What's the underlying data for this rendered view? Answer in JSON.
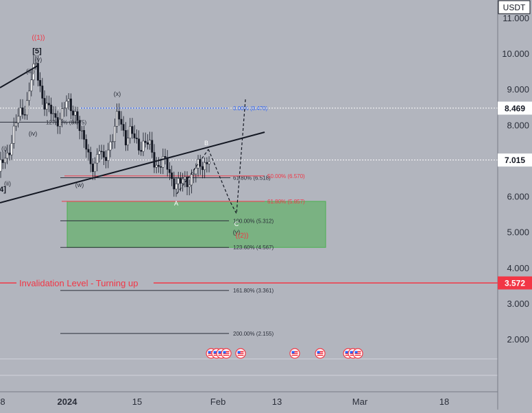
{
  "currency": "USDT",
  "invalidation_text": "Invalidation Level - Turning up",
  "current_price": "7.015",
  "price_tag_high": "8.469",
  "price_tag_invalidation": "3.572",
  "chart_data": {
    "type": "candlestick",
    "y_axis_ticks": [
      "11.000",
      "10.000",
      "9.000",
      "8.000",
      "7.000",
      "6.000",
      "5.000",
      "4.000",
      "3.000",
      "2.000"
    ],
    "y_ticks": [
      11,
      10,
      9,
      8,
      7,
      6,
      5,
      4,
      3,
      2
    ],
    "x_axis_ticks": [
      "8",
      "2024",
      "15",
      "Feb",
      "13",
      "Mar",
      "18"
    ],
    "ylim": [
      1.0,
      11.3
    ],
    "fib_levels": [
      {
        "label": "0.00% (8.470)",
        "value": 8.47,
        "color": "#2962ff"
      },
      {
        "label": "127.20% (8.075)",
        "value": 8.075,
        "color": "#2a2e39"
      },
      {
        "label": "61.80% (6.518)",
        "value": 6.518,
        "color": "#2a2e39"
      },
      {
        "label": "50.00% (6.570)",
        "value": 6.57,
        "color": "#f23645"
      },
      {
        "label": "61.80% (5.857)",
        "value": 5.857,
        "color": "#f23645"
      },
      {
        "label": "100.00% (5.312)",
        "value": 5.312,
        "color": "#2a2e39"
      },
      {
        "label": "123.60% (4.567)",
        "value": 4.567,
        "color": "#2a2e39"
      },
      {
        "label": "161.80% (3.361)",
        "value": 3.361,
        "color": "#2a2e39"
      },
      {
        "label": "200.00% (2.155)",
        "value": 2.155,
        "color": "#2a2e39"
      }
    ],
    "wave_labels": [
      {
        "text": "((1))",
        "color": "#f23645"
      },
      {
        "text": "[5]",
        "color": "#131722"
      },
      {
        "text": "(v)",
        "color": "#2a2e39"
      },
      {
        "text": "(iii)",
        "color": "#2a2e39"
      },
      {
        "text": "(iv)",
        "color": "#2a2e39"
      },
      {
        "text": "(i)",
        "color": "#2a2e39"
      },
      {
        "text": "(ii)",
        "color": "#2a2e39"
      },
      {
        "text": "4]",
        "color": "#131722"
      },
      {
        "text": "(x)",
        "color": "#2a2e39"
      },
      {
        "text": "(w)",
        "color": "#2a2e39"
      },
      {
        "text": "A",
        "color": "#ffffff"
      },
      {
        "text": "B",
        "color": "#ffffff"
      },
      {
        "text": "C",
        "color": "#ffffff"
      },
      {
        "text": "(y)",
        "color": "#2a2e39"
      },
      {
        "text": "((2))",
        "color": "#f23645"
      }
    ],
    "target_zone": {
      "from": 4.567,
      "to": 5.857,
      "color": "#4caf50"
    },
    "invalidation_level": 3.572,
    "last_price": 7.015,
    "high_price": 8.469,
    "colors": {
      "up": "#ffffff",
      "down": "#131722",
      "support_line": "#131722",
      "invalidation": "#f23645",
      "fib_blue": "#2962ff",
      "zone": "#4caf50"
    },
    "event_icons": [
      "us-flag-icon",
      "us-flag-icon",
      "us-flag-icon",
      "us-flag-icon",
      "us-flag-icon",
      "us-flag-icon",
      "us-flag-icon",
      "us-flag-icon",
      "us-flag-icon",
      "us-flag-icon"
    ]
  }
}
